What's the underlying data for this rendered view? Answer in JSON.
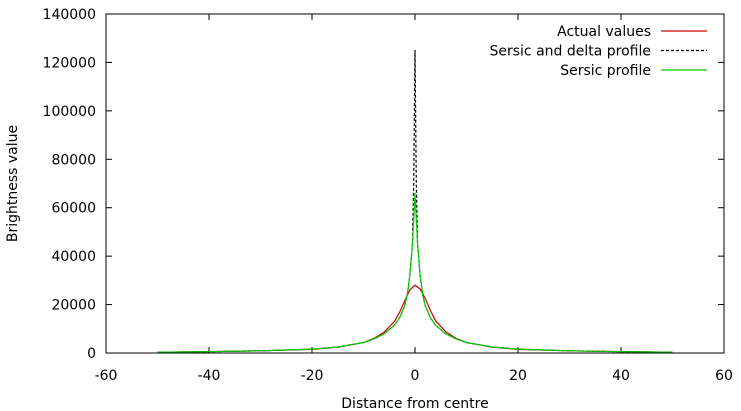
{
  "chart_data": {
    "type": "line",
    "title": "",
    "xlabel": "Distance from centre",
    "ylabel": "Brightness value",
    "xlim": [
      -60,
      60
    ],
    "ylim": [
      0,
      140000
    ],
    "xticks": [
      -60,
      -40,
      -20,
      0,
      20,
      40,
      60
    ],
    "yticks": [
      0,
      20000,
      40000,
      60000,
      80000,
      100000,
      120000,
      140000
    ],
    "xtick_labels": [
      "-60",
      "-40",
      "-20",
      "0",
      "20",
      "40",
      "60"
    ],
    "ytick_labels": [
      "0",
      "20000",
      "40000",
      "60000",
      "80000",
      "100000",
      "120000",
      "140000"
    ],
    "grid": false,
    "legend_position": "top-right",
    "series": [
      {
        "name": "Actual values",
        "color": "#cc0000",
        "dash": "solid",
        "x": [
          -50,
          -40,
          -30,
          -20,
          -15,
          -10,
          -8,
          -6,
          -4,
          -3,
          -2,
          -1,
          0,
          1,
          2,
          3,
          4,
          6,
          8,
          10,
          15,
          20,
          30,
          40,
          50
        ],
        "y": [
          300,
          600,
          900,
          1500,
          2400,
          4300,
          6000,
          8600,
          13000,
          16800,
          21500,
          26000,
          28000,
          26500,
          22500,
          17500,
          13300,
          8700,
          6000,
          4300,
          2400,
          1500,
          900,
          600,
          300
        ]
      },
      {
        "name": "Sersic and delta profile",
        "color": "#000000",
        "dash": "dashed",
        "x": [
          -50,
          -40,
          -30,
          -20,
          -15,
          -10,
          -8,
          -6,
          -4,
          -3,
          -2,
          -1.5,
          -1,
          -0.5,
          -0.25,
          0,
          0.25,
          0.5,
          1,
          1.5,
          2,
          3,
          4,
          6,
          8,
          10,
          15,
          20,
          30,
          40,
          50
        ],
        "y": [
          300,
          550,
          900,
          1600,
          2500,
          4300,
          5800,
          7900,
          11500,
          14500,
          19500,
          24000,
          32000,
          45000,
          70000,
          125000,
          70000,
          45000,
          32000,
          24000,
          19500,
          14500,
          11500,
          7900,
          5800,
          4300,
          2500,
          1600,
          900,
          550,
          300
        ]
      },
      {
        "name": "Sersic profile",
        "color": "#00cc00",
        "dash": "solid",
        "x": [
          -50,
          -40,
          -30,
          -20,
          -15,
          -10,
          -8,
          -6,
          -4,
          -3,
          -2,
          -1.5,
          -1,
          -0.5,
          -0.25,
          0,
          0.25,
          0.5,
          1,
          1.5,
          2,
          3,
          4,
          6,
          8,
          10,
          15,
          20,
          30,
          40,
          50
        ],
        "y": [
          300,
          550,
          900,
          1600,
          2500,
          4300,
          5800,
          7900,
          11500,
          14500,
          19500,
          24000,
          32000,
          45000,
          55000,
          66000,
          55000,
          45000,
          32000,
          24000,
          19500,
          14500,
          11500,
          7900,
          5800,
          4300,
          2500,
          1600,
          900,
          550,
          300
        ]
      }
    ]
  }
}
